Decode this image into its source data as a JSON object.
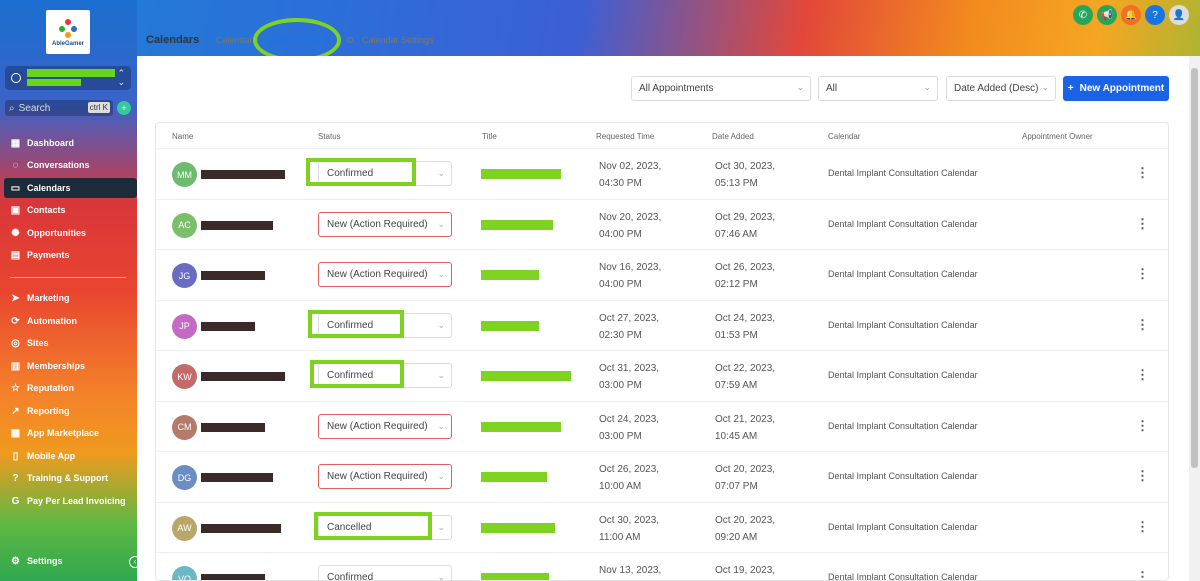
{
  "brand": {
    "logo_text": "AbleGamer"
  },
  "sidebar": {
    "search_placeholder": "Search",
    "search_shortcut": "ctrl K",
    "items": [
      {
        "label": "Dashboard",
        "icon": "grid-icon"
      },
      {
        "label": "Conversations",
        "icon": "chat-icon"
      },
      {
        "label": "Calendars",
        "icon": "calendar-icon"
      },
      {
        "label": "Contacts",
        "icon": "contacts-icon"
      },
      {
        "label": "Opportunities",
        "icon": "opportunities-icon"
      },
      {
        "label": "Payments",
        "icon": "payments-icon"
      },
      {
        "label": "Marketing",
        "icon": "send-icon"
      },
      {
        "label": "Automation",
        "icon": "automation-icon"
      },
      {
        "label": "Sites",
        "icon": "sites-icon"
      },
      {
        "label": "Memberships",
        "icon": "memberships-icon"
      },
      {
        "label": "Reputation",
        "icon": "star-icon"
      },
      {
        "label": "Reporting",
        "icon": "chart-icon"
      },
      {
        "label": "App Marketplace",
        "icon": "apps-icon"
      },
      {
        "label": "Mobile App",
        "icon": "mobile-icon"
      },
      {
        "label": "Training & Support",
        "icon": "help-icon"
      },
      {
        "label": "Pay Per Lead Invoicing",
        "icon": "g-icon"
      }
    ],
    "settings_label": "Settings"
  },
  "header": {
    "title": "Calendars",
    "tabs": [
      "Calendars",
      "Appointments",
      "Calendar Settings"
    ],
    "active_tab": "Appointments"
  },
  "filters": {
    "type": "All Appointments",
    "status": "All",
    "sort": "Date Added (Desc)",
    "new_button": "New Appointment"
  },
  "table": {
    "columns": [
      "Name",
      "Status",
      "Title",
      "Requested Time",
      "Date Added",
      "Calendar",
      "Appointment Owner"
    ],
    "rows": [
      {
        "initials": "MM",
        "color": "#6dbb6d",
        "status": "Confirmed",
        "req1": "Nov 02, 2023,",
        "req2": "04:30 PM",
        "add1": "Oct 30, 2023,",
        "add2": "05:13 PM",
        "calendar": "Dental Implant Consultation Calendar"
      },
      {
        "initials": "AC",
        "color": "#7bbf6a",
        "status": "New (Action Required)",
        "req1": "Nov 20, 2023,",
        "req2": "04:00 PM",
        "add1": "Oct 29, 2023,",
        "add2": "07:46 AM",
        "calendar": "Dental Implant Consultation Calendar"
      },
      {
        "initials": "JG",
        "color": "#6a6cc4",
        "status": "New (Action Required)",
        "req1": "Nov 16, 2023,",
        "req2": "04:00 PM",
        "add1": "Oct 26, 2023,",
        "add2": "02:12 PM",
        "calendar": "Dental Implant Consultation Calendar"
      },
      {
        "initials": "JP",
        "color": "#c46ac4",
        "status": "Confirmed",
        "req1": "Oct 27, 2023,",
        "req2": "02:30 PM",
        "add1": "Oct 24, 2023,",
        "add2": "01:53 PM",
        "calendar": "Dental Implant Consultation Calendar"
      },
      {
        "initials": "KW",
        "color": "#c46a6a",
        "status": "Confirmed",
        "req1": "Oct 31, 2023,",
        "req2": "03:00 PM",
        "add1": "Oct 22, 2023,",
        "add2": "07:59 AM",
        "calendar": "Dental Implant Consultation Calendar"
      },
      {
        "initials": "CM",
        "color": "#b57a6a",
        "status": "New (Action Required)",
        "req1": "Oct 24, 2023,",
        "req2": "03:00 PM",
        "add1": "Oct 21, 2023,",
        "add2": "10:45 AM",
        "calendar": "Dental Implant Consultation Calendar"
      },
      {
        "initials": "DG",
        "color": "#6a8ec4",
        "status": "New (Action Required)",
        "req1": "Oct 26, 2023,",
        "req2": "10:00 AM",
        "add1": "Oct 20, 2023,",
        "add2": "07:07 PM",
        "calendar": "Dental Implant Consultation Calendar"
      },
      {
        "initials": "AW",
        "color": "#b8a66a",
        "status": "Cancelled",
        "req1": "Oct 30, 2023,",
        "req2": "11:00 AM",
        "add1": "Oct 20, 2023,",
        "add2": "09:20 AM",
        "calendar": "Dental Implant Consultation Calendar"
      },
      {
        "initials": "VO",
        "color": "#6ab8c4",
        "status": "Confirmed",
        "req1": "Nov 13, 2023,",
        "req2": "",
        "add1": "Oct 19, 2023,",
        "add2": "",
        "calendar": "Dental Implant Consultation Calendar"
      }
    ]
  },
  "colors": {
    "accent": "#1b63e6",
    "highlight": "#7ed321",
    "redact": "#69d41c"
  }
}
